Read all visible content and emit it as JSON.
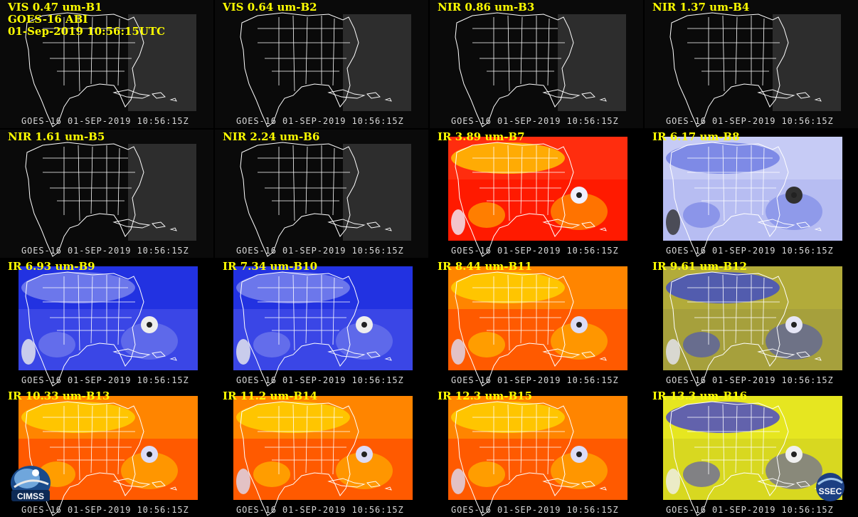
{
  "title_lines": [
    "GOES-16 ABI",
    "01-Sep-2019 10:56:15UTC"
  ],
  "timestamp": "GOES-16 01-SEP-2019 10:56:15Z",
  "panels": [
    {
      "label": "VIS 0.47 um-B1",
      "scheme": "gray"
    },
    {
      "label": "VIS 0.64 um-B2",
      "scheme": "gray"
    },
    {
      "label": "NIR 0.86 um-B3",
      "scheme": "gray"
    },
    {
      "label": "NIR 1.37 um-B4",
      "scheme": "gray"
    },
    {
      "label": "NIR 1.61 um-B5",
      "scheme": "gray"
    },
    {
      "label": "NIR 2.24 um-B6",
      "scheme": "gray"
    },
    {
      "label": "IR 3.89 um-B7",
      "scheme": "hot"
    },
    {
      "label": "IR 6.17 um-B8",
      "scheme": "wv-light"
    },
    {
      "label": "IR 6.93 um-B9",
      "scheme": "wv-blue"
    },
    {
      "label": "IR 7.34 um-B10",
      "scheme": "wv-blue"
    },
    {
      "label": "IR 8.44 um-B11",
      "scheme": "ir-orange"
    },
    {
      "label": "IR 9.61 um-B12",
      "scheme": "ozone"
    },
    {
      "label": "IR 10.33 um-B13",
      "scheme": "ir-orange"
    },
    {
      "label": "IR 11.2 um-B14",
      "scheme": "ir-orange"
    },
    {
      "label": "IR 12.3 um-B15",
      "scheme": "ir-orange"
    },
    {
      "label": "IR 13.3 um-B16",
      "scheme": "co2-yellow"
    }
  ],
  "logos": {
    "left": "CIMSS",
    "right": "SSEC"
  },
  "colors": {
    "label": "#ffff00",
    "timestamp": "#d8d8d8",
    "map_lines": "#ffffff"
  }
}
